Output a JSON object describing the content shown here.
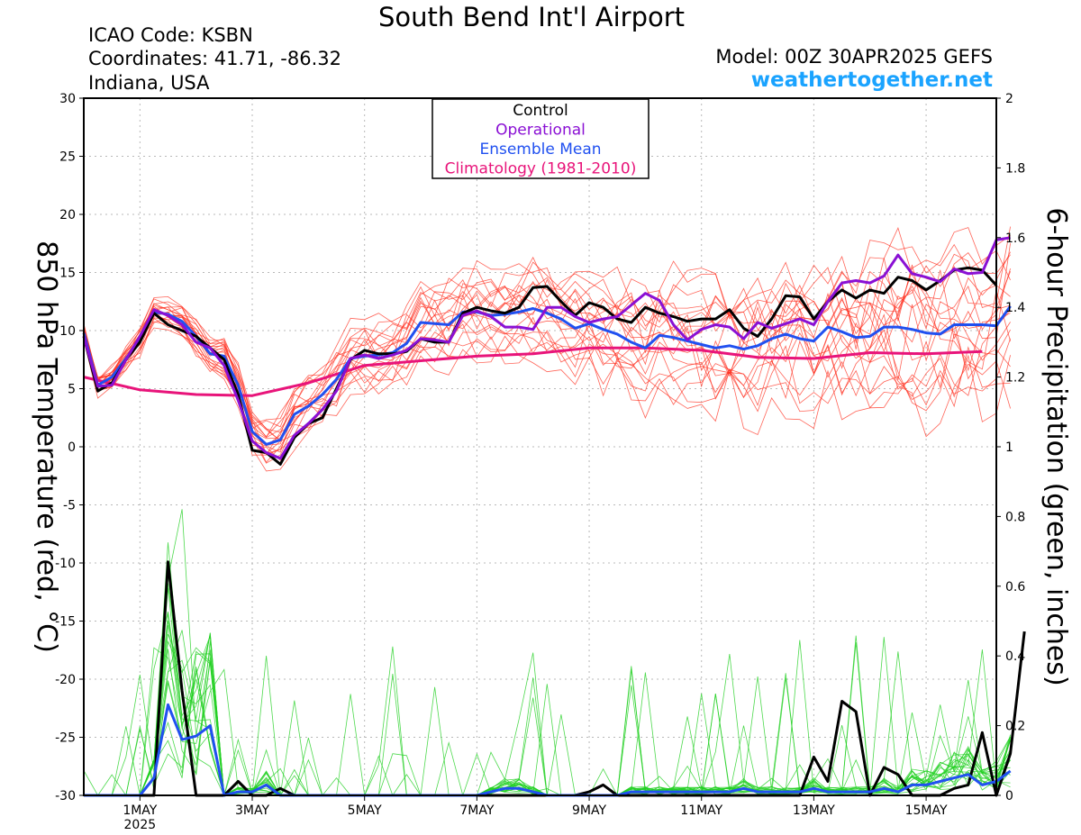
{
  "header": {
    "title": "South Bend Int'l Airport",
    "icao": "ICAO Code: KSBN",
    "coordinates": "Coordinates: 41.71, -86.32",
    "location": "Indiana, USA",
    "model": "Model: 00Z 30APR2025 GEFS",
    "brand": "weathertogether.net"
  },
  "colors": {
    "control": "#000000",
    "operational": "#8a10d4",
    "ensemble_mean": "#2050f0",
    "climatology": "#e8147a",
    "members_temp": "#ff3020",
    "members_precip": "#20d020",
    "brand": "#1aa3ff"
  },
  "chart_data": {
    "type": "line",
    "x_unit": "days since 00Z 30APR2025",
    "xlim": [
      0,
      16.25
    ],
    "x_ticks": [
      {
        "x": 1,
        "label": "1MAY",
        "sub": "2025"
      },
      {
        "x": 3,
        "label": "3MAY"
      },
      {
        "x": 5,
        "label": "5MAY"
      },
      {
        "x": 7,
        "label": "7MAY"
      },
      {
        "x": 9,
        "label": "9MAY"
      },
      {
        "x": 11,
        "label": "11MAY"
      },
      {
        "x": 13,
        "label": "13MAY"
      },
      {
        "x": 15,
        "label": "15MAY"
      }
    ],
    "y_left": {
      "label": "850 hPa Temperature (red, °C)",
      "ylim": [
        -30,
        30
      ],
      "ticks": [
        -30,
        -25,
        -20,
        -15,
        -10,
        -5,
        0,
        5,
        10,
        15,
        20,
        25,
        30
      ]
    },
    "y_right": {
      "label": "6-hour Precipitation (green, inches)",
      "ylim": [
        0,
        2
      ],
      "ticks": [
        0,
        0.2,
        0.4,
        0.6,
        0.8,
        1,
        1.2,
        1.4,
        1.6,
        1.8,
        2
      ]
    },
    "grid": true,
    "legend": {
      "placement": "top-center",
      "entries": [
        {
          "label": "Control",
          "color": "#000000"
        },
        {
          "label": "Operational",
          "color": "#8a10d4"
        },
        {
          "label": "Ensemble Mean",
          "color": "#2050f0"
        },
        {
          "label": "Climatology (1981-2010)",
          "color": "#e8147a"
        }
      ]
    },
    "temperature_series": [
      {
        "name": "Control",
        "color": "#000000",
        "x_start": 0,
        "x_step": 0.25,
        "values": [
          9.5,
          4.8,
          5.5,
          7.5,
          9,
          11.5,
          10.5,
          10,
          9.5,
          8.5,
          7.5,
          4.5,
          -0.3,
          -0.5,
          -1.5,
          0.8,
          2,
          2.5,
          5,
          7.5,
          8.3,
          8,
          8,
          8.2,
          9.3,
          9,
          9,
          11.5,
          12,
          11.7,
          11.5,
          12,
          13.7,
          13.8,
          12.5,
          11.3,
          12.4,
          12,
          11,
          10.7,
          12,
          11.5,
          11.2,
          10.8,
          11,
          11,
          11.8,
          10.2,
          9.5,
          11,
          13,
          12.9,
          11,
          12.5,
          13.5,
          12.8,
          13.5,
          13.2,
          14.6,
          14.3,
          13.5,
          14.3,
          15.2,
          15.4,
          15.2,
          13.9
        ]
      },
      {
        "name": "Operational",
        "color": "#8a10d4",
        "x_start": 0,
        "x_step": 0.25,
        "values": [
          9.5,
          5.2,
          5.3,
          7.5,
          9.5,
          11.8,
          11.3,
          10.5,
          9,
          8.5,
          7,
          4,
          0.5,
          -0.5,
          -1,
          1,
          2,
          3.2,
          4.8,
          7.6,
          7.9,
          7.6,
          7.9,
          8.3,
          9.3,
          9.2,
          9,
          11.3,
          11.7,
          11.2,
          10.3,
          10.3,
          10.1,
          12,
          12,
          11.2,
          10.7,
          11,
          11.2,
          12.2,
          13.2,
          12.6,
          10.5,
          9.2,
          10.1,
          10.5,
          10.3,
          9.3,
          10.7,
          10.2,
          10.6,
          11,
          10.5,
          12.5,
          14.1,
          14.3,
          14.1,
          14.7,
          16.5,
          14.9,
          14.6,
          14.2,
          15.3,
          14.9,
          15,
          17.8,
          18
        ]
      },
      {
        "name": "Ensemble Mean",
        "color": "#2050f0",
        "x_start": 0,
        "x_step": 0.25,
        "values": [
          9.8,
          5.3,
          6,
          7.6,
          9.2,
          11.6,
          11.4,
          10.8,
          9.5,
          8,
          7.8,
          5.3,
          1.3,
          0.2,
          0.6,
          2.8,
          3.5,
          4.5,
          5.8,
          7.6,
          7.8,
          7.9,
          8.1,
          8.9,
          10.7,
          10.6,
          10.5,
          11.6,
          11.6,
          11.3,
          11.4,
          11.6,
          11.9,
          11.5,
          11,
          10.2,
          10.6,
          10.1,
          9.7,
          9,
          8.5,
          9.6,
          9.4,
          9.1,
          8.8,
          8.5,
          8.7,
          8.4,
          8.7,
          9.3,
          9.7,
          9.3,
          9.1,
          10.3,
          9.9,
          9.4,
          9.5,
          10.3,
          10.3,
          10.1,
          9.8,
          9.7,
          10.5,
          10.5,
          10.5,
          10.4,
          12.1
        ]
      },
      {
        "name": "Climatology (1981-2010)",
        "color": "#e8147a",
        "x_start": 0,
        "x_step": 1,
        "values": [
          6,
          4.9,
          4.5,
          4.4,
          5.5,
          7,
          7.4,
          7.8,
          8,
          8.5,
          8.5,
          8.3,
          7.7,
          7.6,
          8.1,
          8,
          8.2
        ]
      }
    ],
    "precipitation_series": [
      {
        "name": "Control",
        "color": "#000000",
        "x_start": 0,
        "x_step": 0.25,
        "values": [
          0,
          0,
          0,
          0,
          0,
          0,
          0.67,
          0.3,
          0,
          0,
          0,
          0.04,
          0,
          0,
          0.02,
          0,
          0,
          0,
          0,
          0,
          0,
          0,
          0,
          0,
          0,
          0,
          0,
          0,
          0,
          0,
          0,
          0,
          0,
          0,
          0,
          0,
          0.01,
          0.03,
          0,
          0,
          0,
          0,
          0,
          0,
          0,
          0,
          0,
          0,
          0,
          0,
          0,
          0,
          0.11,
          0.04,
          0.27,
          0.24,
          0,
          0.08,
          0.06,
          0,
          0,
          0,
          0.02,
          0.03,
          0.18,
          0,
          0.12,
          0.47
        ]
      },
      {
        "name": "Ensemble Mean",
        "color": "#2050f0",
        "x_start": 0,
        "x_step": 0.25,
        "values": [
          0,
          0,
          0,
          0,
          0,
          0.05,
          0.26,
          0.16,
          0.17,
          0.2,
          0,
          0.01,
          0.01,
          0.03,
          0,
          0,
          0,
          0,
          0,
          0,
          0,
          0,
          0,
          0,
          0,
          0,
          0,
          0,
          0,
          0.01,
          0.02,
          0.02,
          0.01,
          0,
          0,
          0,
          0,
          0,
          0,
          0.01,
          0.01,
          0.01,
          0.01,
          0.01,
          0.01,
          0.01,
          0.01,
          0.02,
          0.01,
          0.01,
          0.01,
          0.01,
          0.02,
          0.01,
          0.01,
          0.01,
          0.01,
          0.02,
          0.01,
          0.03,
          0.03,
          0.04,
          0.05,
          0.06,
          0.03,
          0.04,
          0.07
        ]
      }
    ]
  }
}
